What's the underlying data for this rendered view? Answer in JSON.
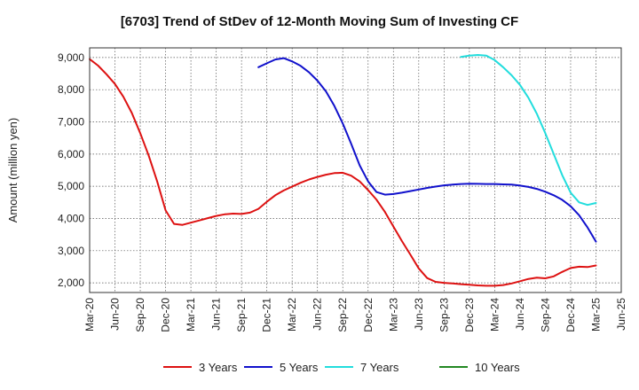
{
  "chart_data": {
    "type": "line",
    "title": "[6703]  Trend of StDev of 12-Month Moving Sum of Investing CF",
    "ylabel": "Amount (million yen)",
    "xlabel": "",
    "x_tick_labels": [
      "Mar-20",
      "Jun-20",
      "Sep-20",
      "Dec-20",
      "Mar-21",
      "Jun-21",
      "Sep-21",
      "Dec-21",
      "Mar-22",
      "Jun-22",
      "Sep-22",
      "Dec-22",
      "Mar-23",
      "Jun-23",
      "Sep-23",
      "Dec-23",
      "Mar-24",
      "Jun-24",
      "Sep-24",
      "Dec-24",
      "Mar-25",
      "Jun-25"
    ],
    "y_ticks": [
      2000,
      3000,
      4000,
      5000,
      6000,
      7000,
      8000,
      9000
    ],
    "y_tick_labels": [
      "2,000",
      "3,000",
      "4,000",
      "5,000",
      "6,000",
      "7,000",
      "8,000",
      "9,000"
    ],
    "ylim": [
      1700,
      9300
    ],
    "x_range": [
      "Mar-20",
      "Jun-25"
    ],
    "grid": true,
    "legend_position": "bottom",
    "series": [
      {
        "name": "3 Years",
        "color": "#dd1111",
        "x": [
          "Mar-20",
          "Apr-20",
          "May-20",
          "Jun-20",
          "Jul-20",
          "Aug-20",
          "Sep-20",
          "Oct-20",
          "Nov-20",
          "Dec-20",
          "Jan-21",
          "Feb-21",
          "Mar-21",
          "Apr-21",
          "May-21",
          "Jun-21",
          "Jul-21",
          "Aug-21",
          "Sep-21",
          "Oct-21",
          "Nov-21",
          "Dec-21",
          "Jan-22",
          "Feb-22",
          "Mar-22",
          "Apr-22",
          "May-22",
          "Jun-22",
          "Jul-22",
          "Aug-22",
          "Sep-22",
          "Oct-22",
          "Nov-22",
          "Dec-22",
          "Jan-23",
          "Feb-23",
          "Mar-23",
          "Apr-23",
          "May-23",
          "Jun-23",
          "Jul-23",
          "Aug-23",
          "Sep-23",
          "Oct-23",
          "Nov-23",
          "Dec-23",
          "Jan-24",
          "Feb-24",
          "Mar-24",
          "Apr-24",
          "May-24",
          "Jun-24",
          "Jul-24",
          "Aug-24",
          "Sep-24",
          "Oct-24",
          "Nov-24",
          "Dec-24",
          "Jan-25",
          "Feb-25",
          "Mar-25"
        ],
        "values": [
          8950,
          8750,
          8480,
          8180,
          7780,
          7280,
          6650,
          5950,
          5150,
          4250,
          3830,
          3800,
          3870,
          3940,
          4010,
          4080,
          4130,
          4150,
          4140,
          4180,
          4300,
          4520,
          4720,
          4870,
          4990,
          5110,
          5210,
          5290,
          5360,
          5410,
          5420,
          5330,
          5150,
          4880,
          4580,
          4200,
          3750,
          3300,
          2880,
          2450,
          2150,
          2030,
          2000,
          1980,
          1960,
          1940,
          1920,
          1910,
          1910,
          1930,
          1980,
          2050,
          2120,
          2160,
          2140,
          2200,
          2340,
          2460,
          2500,
          2490,
          2540
        ]
      },
      {
        "name": "5 Years",
        "color": "#1111cc",
        "x": [
          "Nov-21",
          "Dec-21",
          "Jan-22",
          "Feb-22",
          "Mar-22",
          "Apr-22",
          "May-22",
          "Jun-22",
          "Jul-22",
          "Aug-22",
          "Sep-22",
          "Oct-22",
          "Nov-22",
          "Dec-22",
          "Jan-23",
          "Feb-23",
          "Mar-23",
          "Apr-23",
          "May-23",
          "Jun-23",
          "Jul-23",
          "Aug-23",
          "Sep-23",
          "Oct-23",
          "Nov-23",
          "Dec-23",
          "Jan-24",
          "Feb-24",
          "Mar-24",
          "Apr-24",
          "May-24",
          "Jun-24",
          "Jul-24",
          "Aug-24",
          "Sep-24",
          "Oct-24",
          "Nov-24",
          "Dec-24",
          "Jan-25",
          "Feb-25",
          "Mar-25"
        ],
        "values": [
          8700,
          8820,
          8940,
          8980,
          8880,
          8740,
          8540,
          8280,
          7950,
          7500,
          6950,
          6320,
          5650,
          5150,
          4820,
          4740,
          4760,
          4800,
          4850,
          4900,
          4950,
          4990,
          5030,
          5050,
          5070,
          5080,
          5075,
          5070,
          5070,
          5060,
          5050,
          5020,
          4980,
          4920,
          4830,
          4720,
          4580,
          4380,
          4100,
          3720,
          3280
        ]
      },
      {
        "name": "7 Years",
        "color": "#22dddd",
        "x": [
          "Nov-23",
          "Dec-23",
          "Jan-24",
          "Feb-24",
          "Mar-24",
          "Apr-24",
          "May-24",
          "Jun-24",
          "Jul-24",
          "Aug-24",
          "Sep-24",
          "Oct-24",
          "Nov-24",
          "Dec-24",
          "Jan-25",
          "Feb-25",
          "Mar-25"
        ],
        "values": [
          9020,
          9060,
          9080,
          9060,
          8920,
          8700,
          8450,
          8150,
          7750,
          7250,
          6650,
          6000,
          5350,
          4800,
          4500,
          4420,
          4480
        ]
      },
      {
        "name": "10 Years",
        "color": "#228822",
        "x": [],
        "values": []
      }
    ]
  }
}
